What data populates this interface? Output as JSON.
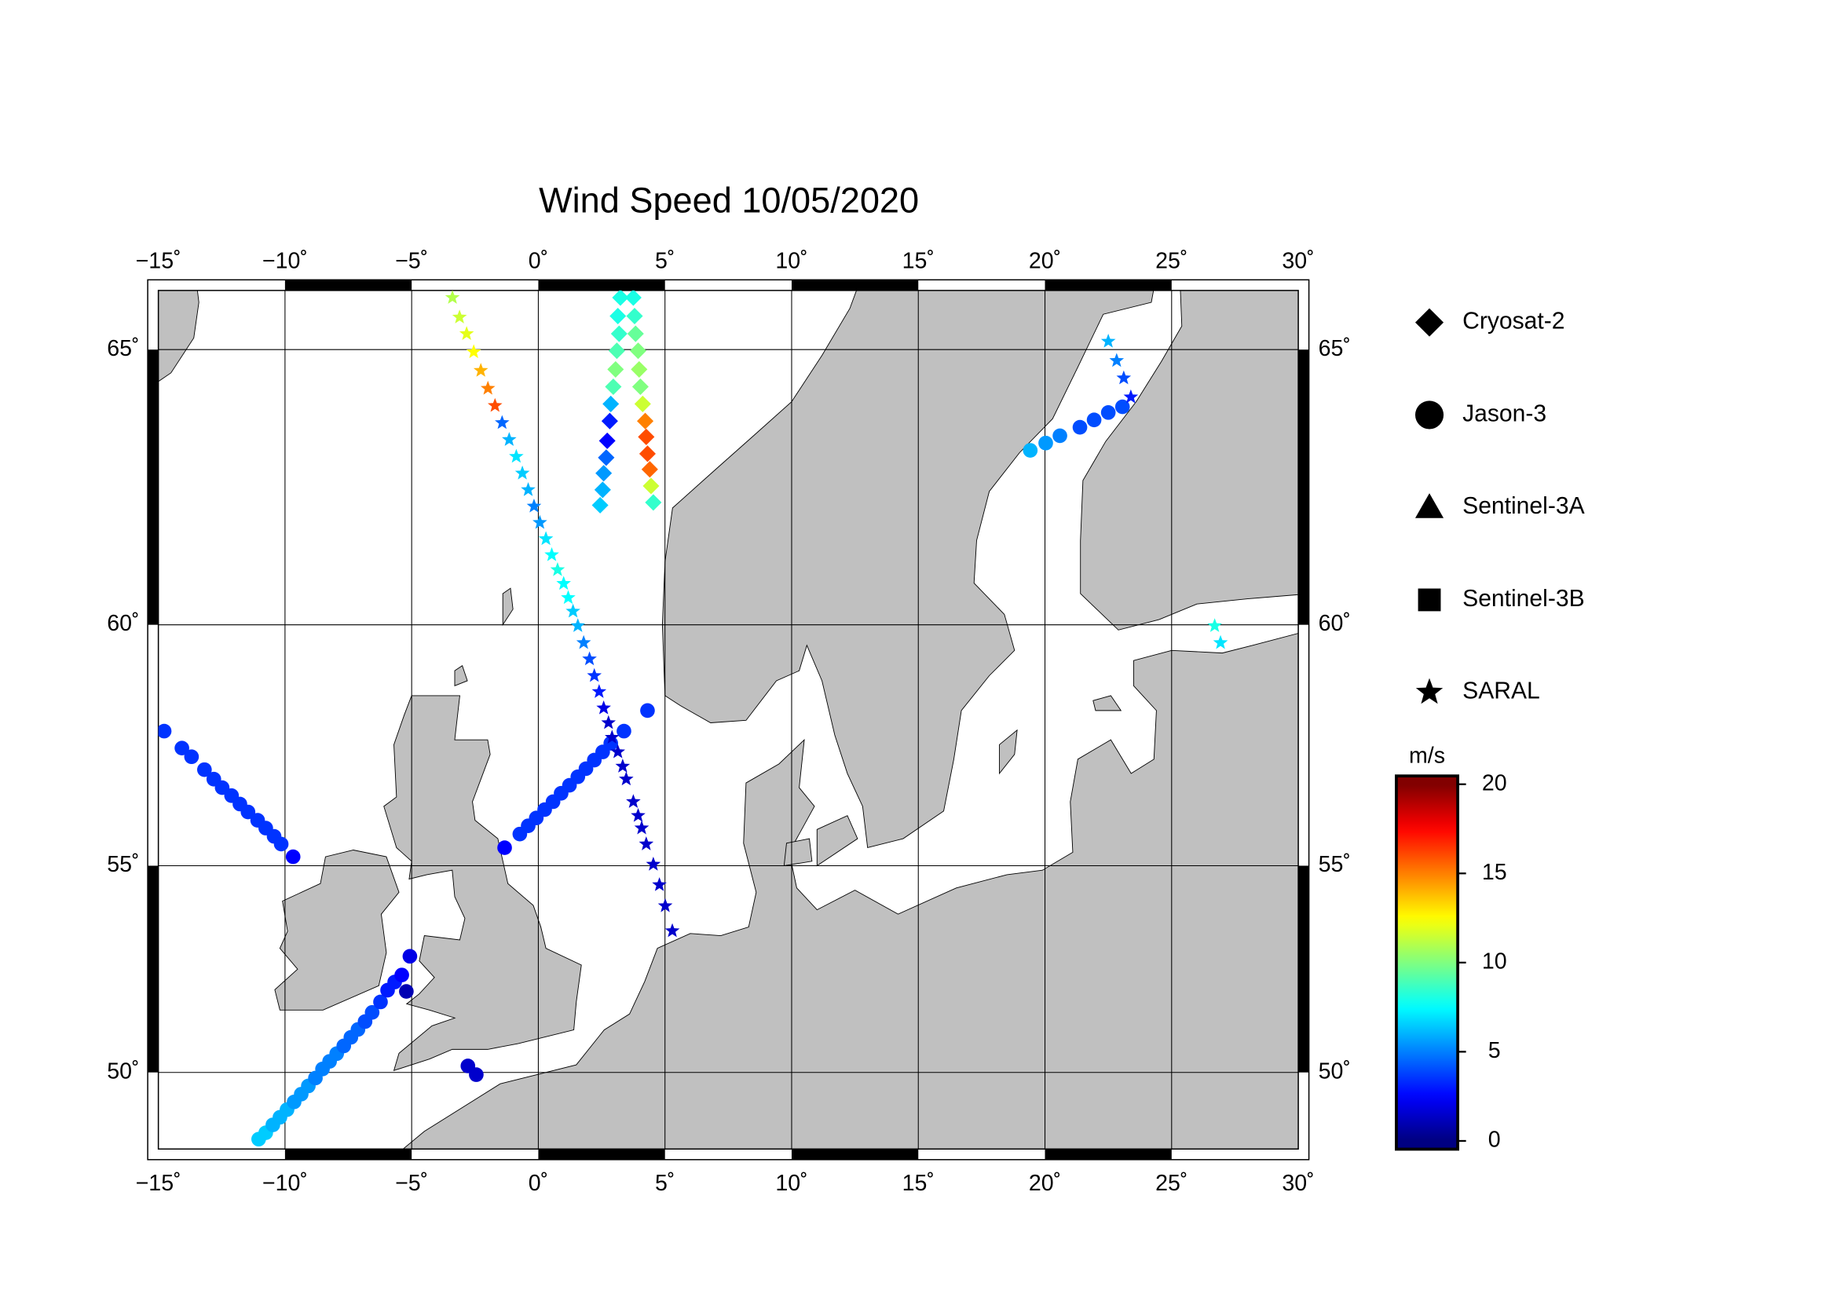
{
  "chart_data": {
    "type": "scatter",
    "title": "Wind Speed 10/05/2020",
    "xlim": [
      -15,
      30
    ],
    "ylim": [
      47.9,
      66
    ],
    "xticks": [
      {
        "value": -15,
        "label": "−15˚"
      },
      {
        "value": -10,
        "label": "−10˚"
      },
      {
        "value": -5,
        "label": "−5˚"
      },
      {
        "value": 0,
        "label": "0˚"
      },
      {
        "value": 5,
        "label": "5˚"
      },
      {
        "value": 10,
        "label": "10˚"
      },
      {
        "value": 15,
        "label": "15˚"
      },
      {
        "value": 20,
        "label": "20˚"
      },
      {
        "value": 25,
        "label": "25˚"
      },
      {
        "value": 30,
        "label": "30˚"
      }
    ],
    "yticks": [
      {
        "value": 50,
        "label": "50˚"
      },
      {
        "value": 55,
        "label": "55˚"
      },
      {
        "value": 60,
        "label": "60˚"
      },
      {
        "value": 65,
        "label": "65˚"
      }
    ],
    "grid": true,
    "colorbar": {
      "label": "m/s",
      "lim": [
        0,
        20
      ],
      "ticks": [
        0,
        5,
        10,
        15,
        20
      ],
      "colormap": "jet"
    },
    "series": [
      {
        "name": "Cryosat-2",
        "marker": "diamond",
        "x": [
          3.24,
          3.14,
          3.19,
          3.1,
          3.05,
          2.96,
          2.86,
          2.82,
          2.72,
          2.68,
          2.58,
          2.54,
          2.44,
          3.75,
          3.8,
          3.84,
          3.94,
          3.98,
          4.03,
          4.12,
          4.22,
          4.26,
          4.31,
          4.4,
          4.45,
          4.54
        ],
        "y": [
          65.88,
          65.57,
          65.27,
          64.98,
          64.66,
          64.36,
          64.06,
          63.76,
          63.41,
          63.11,
          62.83,
          62.53,
          62.25,
          65.88,
          65.57,
          65.27,
          64.98,
          64.66,
          64.36,
          64.06,
          63.76,
          63.48,
          63.18,
          62.9,
          62.6,
          62.3
        ],
        "values": [
          8,
          8,
          8.5,
          9,
          10,
          9,
          6,
          3,
          2.5,
          4.5,
          5.5,
          6,
          6.5,
          8,
          8.5,
          9.5,
          10,
          10.5,
          10,
          11.5,
          15,
          16,
          16,
          15.5,
          11.5,
          8.5
        ]
      },
      {
        "name": "Jason-3",
        "marker": "circle",
        "x": [
          -14.77,
          -14.07,
          -13.69,
          -13.18,
          -12.81,
          -12.48,
          -12.11,
          -11.78,
          -11.46,
          -11.08,
          -10.76,
          -10.43,
          -10.15,
          -9.68,
          -11.04,
          -10.76,
          -10.48,
          -10.2,
          -9.92,
          -9.64,
          -9.36,
          -9.08,
          -8.8,
          -8.52,
          -8.24,
          -7.96,
          -7.68,
          -7.4,
          -7.12,
          -6.84,
          -6.56,
          -6.23,
          -5.95,
          -5.67,
          -5.39,
          -5.07,
          -5.21,
          -1.33,
          -0.73,
          -0.4,
          -0.08,
          0.25,
          0.58,
          0.9,
          1.23,
          1.56,
          1.88,
          2.21,
          2.54,
          2.86,
          3.38,
          4.31,
          -2.78,
          -2.45,
          19.42,
          20.03,
          20.59,
          21.38,
          21.94,
          22.5,
          23.06
        ],
        "y": [
          57.88,
          57.53,
          57.35,
          57.08,
          56.88,
          56.7,
          56.53,
          56.35,
          56.18,
          56.0,
          55.83,
          55.65,
          55.48,
          55.2,
          48.18,
          48.36,
          48.58,
          48.79,
          49.0,
          49.21,
          49.42,
          49.64,
          49.85,
          50.09,
          50.29,
          50.49,
          50.69,
          50.91,
          51.11,
          51.31,
          51.54,
          51.8,
          52.09,
          52.29,
          52.46,
          52.91,
          52.06,
          55.4,
          55.7,
          55.88,
          56.05,
          56.23,
          56.4,
          56.58,
          56.75,
          56.93,
          57.1,
          57.28,
          57.45,
          57.63,
          57.88,
          58.3,
          50.17,
          49.94,
          63.24,
          63.37,
          63.5,
          63.65,
          63.78,
          63.91,
          64.01
        ],
        "values": [
          3.5,
          3.5,
          3.5,
          3.5,
          3.5,
          3.5,
          3.5,
          3.5,
          3.5,
          3.5,
          3.5,
          3.5,
          3.5,
          2.5,
          6.5,
          6.5,
          6,
          6,
          6,
          5.5,
          5.5,
          5.5,
          5,
          5,
          5,
          5,
          4.5,
          4.5,
          4.5,
          4,
          4,
          3.5,
          3,
          3,
          2.5,
          2,
          1,
          2.5,
          3.5,
          3.5,
          3.5,
          3.5,
          3.5,
          3.5,
          3.5,
          3.5,
          3.5,
          3.5,
          3.5,
          3.5,
          3.5,
          3.5,
          1.5,
          1.5,
          6,
          5.5,
          5,
          4,
          4,
          4,
          4
        ]
      },
      {
        "name": "Sentinel-3A",
        "marker": "triangle",
        "x": [],
        "y": [],
        "values": []
      },
      {
        "name": "Sentinel-3B",
        "marker": "square",
        "x": [],
        "y": [],
        "values": []
      },
      {
        "name": "SARAL",
        "marker": "star",
        "x": [
          -3.39,
          -3.11,
          -2.83,
          -2.55,
          -2.27,
          -1.99,
          -1.71,
          -1.43,
          -1.15,
          -0.87,
          -0.63,
          -0.4,
          -0.17,
          0.06,
          0.3,
          0.53,
          0.76,
          1.0,
          1.18,
          1.37,
          1.56,
          1.79,
          2.02,
          2.21,
          2.4,
          2.58,
          2.77,
          2.91,
          3.14,
          3.33,
          3.47,
          3.75,
          3.94,
          4.08,
          4.26,
          4.54,
          4.78,
          5.01,
          5.29,
          22.5,
          22.83,
          23.11,
          23.39,
          26.7,
          26.93
        ],
        "y": [
          65.88,
          65.55,
          65.27,
          64.96,
          64.64,
          64.33,
          64.03,
          63.73,
          63.43,
          63.13,
          62.83,
          62.53,
          62.23,
          61.93,
          61.63,
          61.33,
          61.05,
          60.79,
          60.52,
          60.26,
          59.98,
          59.65,
          59.33,
          59.0,
          58.68,
          58.35,
          58.05,
          57.75,
          57.45,
          57.15,
          56.88,
          56.4,
          56.1,
          55.83,
          55.48,
          55.03,
          54.57,
          54.09,
          53.51,
          65.14,
          64.81,
          64.51,
          64.18,
          59.98,
          59.65
        ],
        "values": [
          11,
          11.5,
          12,
          12.5,
          14,
          15,
          16,
          4.5,
          6,
          7,
          6.5,
          6,
          5,
          5.5,
          7,
          7.5,
          8,
          7.5,
          7.5,
          6.5,
          6,
          5,
          4,
          3.5,
          3,
          2,
          1.5,
          1.5,
          1.5,
          1.5,
          1.5,
          1.5,
          1.5,
          1.5,
          1.5,
          1.5,
          1.5,
          1.5,
          1.5,
          6,
          5,
          4,
          3,
          8,
          7
        ]
      }
    ]
  }
}
